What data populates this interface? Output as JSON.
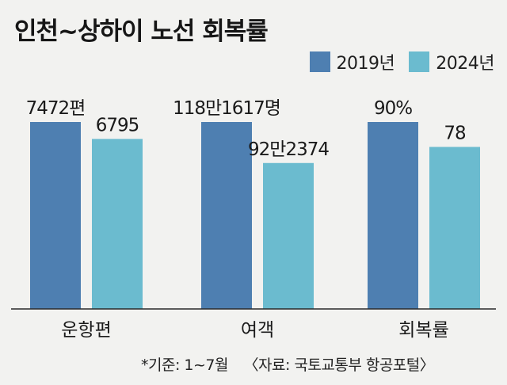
{
  "chart_data": {
    "type": "bar",
    "title": "인천~상하이 노선 회복률",
    "categories": [
      "운항편",
      "여객",
      "회복률"
    ],
    "series": [
      {
        "name": "2019년",
        "color": "#4e7fb1",
        "values": [
          7472,
          1181617,
          90
        ],
        "labels": [
          "7472편",
          "118만1617명",
          "90%"
        ]
      },
      {
        "name": "2024년",
        "color": "#6bbbcf",
        "values": [
          6795,
          922374,
          78
        ],
        "labels": [
          "6795",
          "92만2374",
          "78"
        ]
      }
    ],
    "legend_position": "top-right",
    "grid": false
  },
  "footer": {
    "note": "*기준: 1~7월",
    "source": "〈자료: 국토교통부 항공포털〉"
  }
}
